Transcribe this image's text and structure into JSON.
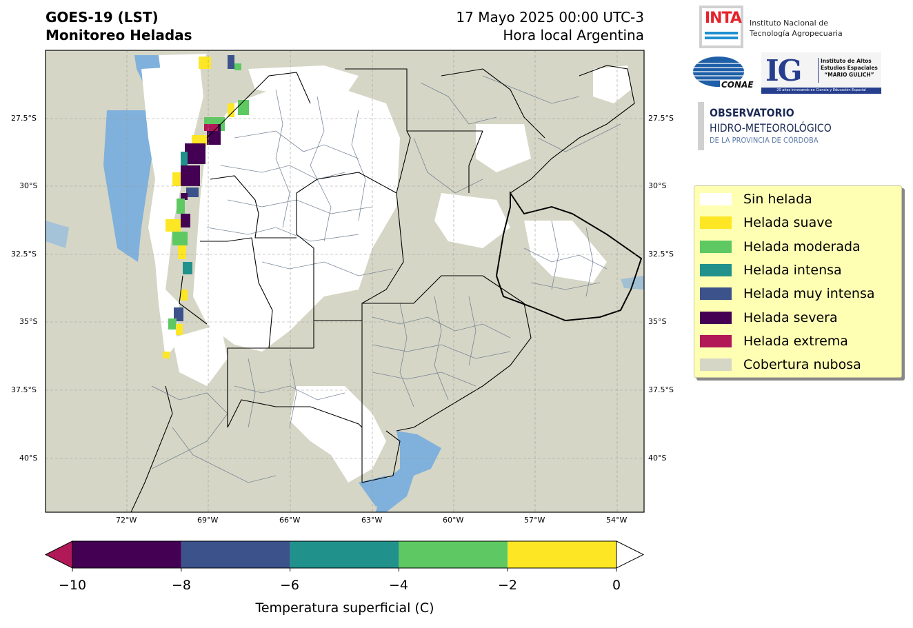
{
  "header": {
    "title_line1": "GOES-19 (LST)",
    "title_line2": "Monitoreo Heladas",
    "date_line1": "17 Mayo 2025 00:00 UTC-3",
    "date_line2": "Hora local Argentina"
  },
  "map": {
    "lat_labels": [
      "27.5°S",
      "30°S",
      "32.5°S",
      "35°S",
      "37.5°S",
      "40°S"
    ],
    "lon_labels": [
      "72°W",
      "69°W",
      "66°W",
      "63°W",
      "60°W",
      "57°W",
      "54°W"
    ],
    "colors": {
      "cloud": "#d6d6c6",
      "no_frost": "#ffffff",
      "water": "#7fb1dc",
      "boundary": "#000000",
      "department": "#6c7d90"
    }
  },
  "logos": {
    "inta_word": "INTA",
    "inta_line1": "Instituto Nacional de",
    "inta_line2": "Tecnología Agropecuaria",
    "conae_word": "CONAE",
    "ig_letters": "IG",
    "ig_line1": "Instituto de Altos",
    "ig_line2": "Estudios Espaciales",
    "ig_line3": "“MARIO GULICH”",
    "ig_strip": "20 años innovando en Ciencia y Educación Espacial",
    "obs_line1": "OBSERVATORIO",
    "obs_line2": "HIDRO-METEOROLÓGICO",
    "obs_line3": "DE LA PROVINCIA DE CÓRDOBA"
  },
  "legend": {
    "items": [
      {
        "label": "Sin helada",
        "color": "#ffffff"
      },
      {
        "label": "Helada suave",
        "color": "#fde725"
      },
      {
        "label": "Helada moderada",
        "color": "#5ec962"
      },
      {
        "label": "Helada intensa",
        "color": "#21918c"
      },
      {
        "label": "Helada muy intensa",
        "color": "#3b528b"
      },
      {
        "label": "Helada severa",
        "color": "#440154"
      },
      {
        "label": "Helada extrema",
        "color": "#b11857"
      },
      {
        "label": "Cobertura nubosa",
        "color": "#d6d6c6"
      }
    ]
  },
  "colorbar": {
    "ticks": [
      "−10",
      "−8",
      "−6",
      "−4",
      "−2",
      "0"
    ],
    "label": "Temperatura superficial (C)",
    "bins": [
      {
        "from": -10,
        "to": -8,
        "color": "#440154"
      },
      {
        "from": -8,
        "to": -6,
        "color": "#3b528b"
      },
      {
        "from": -6,
        "to": -4,
        "color": "#21918c"
      },
      {
        "from": -4,
        "to": -2,
        "color": "#5ec962"
      },
      {
        "from": -2,
        "to": 0,
        "color": "#fde725"
      }
    ],
    "under_color": "#b11857",
    "over_color": "#ffffff"
  }
}
